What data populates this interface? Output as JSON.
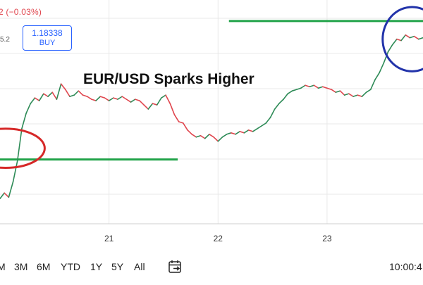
{
  "header": {
    "change": "2 (−0.03%)",
    "price_stub": "5.2",
    "buy_price": "1.18338",
    "buy_label": "BUY"
  },
  "chart_data": {
    "type": "line",
    "title": "EUR/USD Sparks Higher",
    "x_ticks": [
      {
        "x": 21,
        "label": "21"
      },
      {
        "x": 22,
        "label": "22"
      },
      {
        "x": 23,
        "label": "23"
      }
    ],
    "xlim": [
      20.0,
      23.88
    ],
    "ylim": [
      1.17,
      1.186
    ],
    "grid": true,
    "series": [
      {
        "color": "#2e8b57",
        "color_down": "#e0464e",
        "points": [
          [
            20.0,
            1.1718
          ],
          [
            20.04,
            1.1722
          ],
          [
            20.08,
            1.1719
          ],
          [
            20.12,
            1.173
          ],
          [
            20.16,
            1.1745
          ],
          [
            20.2,
            1.1768
          ],
          [
            20.24,
            1.1779
          ],
          [
            20.28,
            1.1786
          ],
          [
            20.32,
            1.179
          ],
          [
            20.36,
            1.1788
          ],
          [
            20.4,
            1.1793
          ],
          [
            20.44,
            1.1791
          ],
          [
            20.48,
            1.1794
          ],
          [
            20.52,
            1.1789
          ],
          [
            20.56,
            1.18
          ],
          [
            20.6,
            1.1796
          ],
          [
            20.64,
            1.1791
          ],
          [
            20.68,
            1.1792
          ],
          [
            20.72,
            1.1795
          ],
          [
            20.76,
            1.1792
          ],
          [
            20.8,
            1.1791
          ],
          [
            20.84,
            1.1789
          ],
          [
            20.88,
            1.1788
          ],
          [
            20.92,
            1.1791
          ],
          [
            20.96,
            1.179
          ],
          [
            21.0,
            1.1788
          ],
          [
            21.04,
            1.179
          ],
          [
            21.08,
            1.1789
          ],
          [
            21.12,
            1.1791
          ],
          [
            21.16,
            1.1789
          ],
          [
            21.2,
            1.1787
          ],
          [
            21.24,
            1.1789
          ],
          [
            21.28,
            1.1788
          ],
          [
            21.32,
            1.1785
          ],
          [
            21.36,
            1.1782
          ],
          [
            21.4,
            1.1786
          ],
          [
            21.44,
            1.1785
          ],
          [
            21.48,
            1.179
          ],
          [
            21.52,
            1.1792
          ],
          [
            21.56,
            1.1786
          ],
          [
            21.6,
            1.1778
          ],
          [
            21.64,
            1.1773
          ],
          [
            21.68,
            1.1772
          ],
          [
            21.72,
            1.1767
          ],
          [
            21.76,
            1.1764
          ],
          [
            21.8,
            1.1762
          ],
          [
            21.84,
            1.1763
          ],
          [
            21.88,
            1.1761
          ],
          [
            21.92,
            1.1764
          ],
          [
            21.96,
            1.1762
          ],
          [
            22.0,
            1.1759
          ],
          [
            22.04,
            1.1762
          ],
          [
            22.08,
            1.1764
          ],
          [
            22.12,
            1.1765
          ],
          [
            22.16,
            1.1764
          ],
          [
            22.2,
            1.1766
          ],
          [
            22.24,
            1.1765
          ],
          [
            22.28,
            1.1767
          ],
          [
            22.32,
            1.1766
          ],
          [
            22.36,
            1.1768
          ],
          [
            22.4,
            1.177
          ],
          [
            22.44,
            1.1772
          ],
          [
            22.48,
            1.1776
          ],
          [
            22.52,
            1.1782
          ],
          [
            22.56,
            1.1786
          ],
          [
            22.6,
            1.1789
          ],
          [
            22.64,
            1.1793
          ],
          [
            22.68,
            1.1795
          ],
          [
            22.72,
            1.1796
          ],
          [
            22.76,
            1.1797
          ],
          [
            22.8,
            1.1799
          ],
          [
            22.84,
            1.1798
          ],
          [
            22.88,
            1.1799
          ],
          [
            22.92,
            1.1797
          ],
          [
            22.96,
            1.1798
          ],
          [
            23.0,
            1.1797
          ],
          [
            23.04,
            1.1796
          ],
          [
            23.08,
            1.1794
          ],
          [
            23.12,
            1.1795
          ],
          [
            23.16,
            1.1792
          ],
          [
            23.2,
            1.1793
          ],
          [
            23.24,
            1.1791
          ],
          [
            23.28,
            1.1792
          ],
          [
            23.32,
            1.1791
          ],
          [
            23.36,
            1.1794
          ],
          [
            23.4,
            1.1796
          ],
          [
            23.44,
            1.1803
          ],
          [
            23.48,
            1.1808
          ],
          [
            23.52,
            1.1815
          ],
          [
            23.56,
            1.1823
          ],
          [
            23.6,
            1.1828
          ],
          [
            23.64,
            1.1832
          ],
          [
            23.68,
            1.1831
          ],
          [
            23.72,
            1.1835
          ],
          [
            23.76,
            1.1833
          ],
          [
            23.8,
            1.1834
          ],
          [
            23.84,
            1.1832
          ],
          [
            23.88,
            1.1833
          ]
        ]
      }
    ],
    "annotations": [
      {
        "type": "hline",
        "y": 1.1746,
        "x_start": 20.0,
        "x_end": 21.63,
        "color": "#22a34a"
      },
      {
        "type": "hline",
        "y": 1.1845,
        "x_start": 22.1,
        "x_end": 23.88,
        "color": "#22a34a"
      },
      {
        "type": "ellipse",
        "cx": 20.05,
        "cy": 1.1754,
        "rx": 0.36,
        "ry": 0.0014,
        "color": "#d62828"
      },
      {
        "type": "ellipse",
        "cx": 23.78,
        "cy": 1.1832,
        "rx": 0.27,
        "ry": 0.0023,
        "color": "#2233aa"
      }
    ]
  },
  "range_buttons": [
    "M",
    "3M",
    "6M",
    "YTD",
    "1Y",
    "5Y",
    "All"
  ],
  "goto_icon": "calendar-goto-icon",
  "clock": "10:00:4"
}
